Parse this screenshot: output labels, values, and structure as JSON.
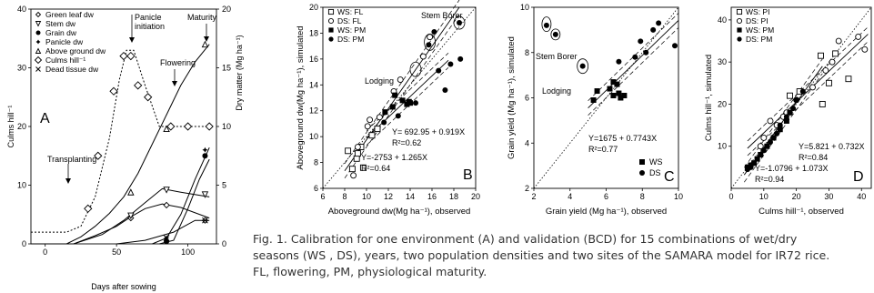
{
  "caption": {
    "line1": "Fig. 1. Calibration for one environment (A) and validation (BCD) for 15 combinations of wet/dry",
    "line2": "seasons (WS , DS), years, two population densities and two sites of the SAMARA model for IR72 rice.",
    "line3": "FL, flowering, PM, physiological maturity."
  },
  "chart_data": [
    {
      "id": "A",
      "type": "line",
      "panel_label": "A",
      "xlabel": "Days after sowing",
      "ylabel": "Culms hill⁻¹",
      "y2label": "Dry matter (Mg ha⁻¹)",
      "xlim": [
        -10,
        120
      ],
      "ylim": [
        0,
        40
      ],
      "y2lim": [
        0,
        20
      ],
      "xticks": [
        "0",
        "50",
        "100"
      ],
      "yticks": [
        "0",
        "10",
        "20",
        "30",
        "40"
      ],
      "y2ticks": [
        "0",
        "5",
        "10",
        "15",
        "20"
      ],
      "legend": [
        "Green leaf dw",
        "Stem dw",
        "Grain dw",
        "Panicle dw",
        "Above ground dw",
        "Culms hill⁻¹",
        "Dead tissue dw"
      ],
      "annotations": [
        "Transplanting",
        "Panicle initiation",
        "Maturity",
        "Flowering"
      ],
      "panicle_line1": "Panicle",
      "panicle_line2": "initiation",
      "series": [
        {
          "name": "Culms hill⁻¹",
          "axis": "left",
          "marker": "diamond",
          "style": "dotted",
          "sim": [
            [
              -10,
              2
            ],
            [
              15,
              2
            ],
            [
              25,
              3
            ],
            [
              35,
              8
            ],
            [
              45,
              18
            ],
            [
              52,
              28
            ],
            [
              57,
              33
            ],
            [
              62,
              33
            ],
            [
              70,
              27
            ],
            [
              80,
              20
            ],
            [
              90,
              20
            ],
            [
              100,
              20
            ],
            [
              115,
              20
            ]
          ],
          "obs": [
            [
              30,
              6
            ],
            [
              37,
              15
            ],
            [
              48,
              26
            ],
            [
              55,
              32
            ],
            [
              60,
              32
            ],
            [
              65,
              27
            ],
            [
              72,
              25
            ],
            [
              88,
              20
            ],
            [
              100,
              20
            ],
            [
              115,
              20
            ]
          ]
        },
        {
          "name": "Above ground dw",
          "axis": "right",
          "marker": "triangle-up",
          "style": "solid",
          "sim": [
            [
              -10,
              0
            ],
            [
              15,
              0
            ],
            [
              25,
              0.6
            ],
            [
              35,
              1.5
            ],
            [
              45,
              2.6
            ],
            [
              55,
              4
            ],
            [
              65,
              6
            ],
            [
              75,
              8.5
            ],
            [
              85,
              11
            ],
            [
              95,
              13.5
            ],
            [
              105,
              15.5
            ],
            [
              115,
              17
            ]
          ],
          "obs": [
            [
              60,
              4.4
            ],
            [
              85,
              9.8
            ],
            [
              112,
              17
            ]
          ]
        },
        {
          "name": "Green leaf dw",
          "axis": "right",
          "marker": "diamond-open",
          "style": "solid",
          "sim": [
            [
              -10,
              0
            ],
            [
              20,
              0
            ],
            [
              35,
              0.7
            ],
            [
              50,
              1.5
            ],
            [
              60,
              2.3
            ],
            [
              70,
              3
            ],
            [
              82,
              3.4
            ],
            [
              95,
              3.1
            ],
            [
              115,
              2.2
            ]
          ],
          "obs": [
            [
              60,
              2.2
            ],
            [
              85,
              3.3
            ],
            [
              112,
              2
            ]
          ]
        },
        {
          "name": "Stem dw",
          "axis": "right",
          "marker": "triangle-down",
          "style": "solid",
          "sim": [
            [
              -10,
              0
            ],
            [
              20,
              0
            ],
            [
              40,
              0.8
            ],
            [
              55,
              2
            ],
            [
              70,
              3.5
            ],
            [
              82,
              4.7
            ],
            [
              95,
              4.4
            ],
            [
              115,
              4
            ]
          ],
          "obs": [
            [
              60,
              2.4
            ],
            [
              85,
              4.6
            ],
            [
              112,
              4.2
            ]
          ]
        },
        {
          "name": "Panicle dw",
          "axis": "right",
          "marker": "star",
          "style": "solid",
          "sim": [
            [
              75,
              0
            ],
            [
              85,
              0.5
            ],
            [
              95,
              2.5
            ],
            [
              105,
              5.5
            ],
            [
              115,
              8.2
            ]
          ],
          "obs": [
            [
              85,
              0.5
            ],
            [
              112,
              8
            ]
          ]
        },
        {
          "name": "Grain dw",
          "axis": "right",
          "marker": "circle",
          "style": "solid",
          "sim": [
            [
              80,
              0
            ],
            [
              90,
              0.3
            ],
            [
              100,
              3
            ],
            [
              108,
              5.5
            ],
            [
              115,
              7.2
            ]
          ],
          "obs": [
            [
              85,
              0.2
            ],
            [
              112,
              7.5
            ]
          ]
        },
        {
          "name": "Dead tissue dw",
          "axis": "right",
          "marker": "x",
          "style": "solid",
          "sim": [
            [
              50,
              0
            ],
            [
              70,
              0.3
            ],
            [
              90,
              1
            ],
            [
              105,
              2
            ],
            [
              115,
              2
            ]
          ],
          "obs": [
            [
              85,
              0.5
            ],
            [
              112,
              2
            ]
          ]
        }
      ]
    },
    {
      "id": "B",
      "type": "scatter",
      "panel_label": "B",
      "xlabel": "Aboveground dw(Mg ha⁻¹), observed",
      "ylabel": "Aboveground dw(Mg ha⁻¹), simulated",
      "xlim": [
        6,
        20
      ],
      "ylim": [
        6,
        20
      ],
      "xticks": [
        "6",
        "8",
        "10",
        "12",
        "14",
        "16",
        "18",
        "20"
      ],
      "yticks": [
        "6",
        "8",
        "10",
        "12",
        "14",
        "16",
        "18",
        "20"
      ],
      "legend": [
        "WS: FL",
        "DS: FL",
        "WS: PM",
        "DS: PM"
      ],
      "annotations": [
        "Stem Borer",
        "Lodging"
      ],
      "eq1": "Y= 692.95 + 0.919X",
      "r2_1": "R²=0.62",
      "eq2": "Y=-2753 + 1.265X",
      "r2_2": "R²=0.64",
      "series": [
        {
          "name": "WS: FL",
          "marker": "square-open",
          "points": [
            [
              8.3,
              8.9
            ],
            [
              8.7,
              7.5
            ],
            [
              9.1,
              8.3
            ],
            [
              9.5,
              9.2
            ],
            [
              9.2,
              8.7
            ],
            [
              10.5,
              10.1
            ],
            [
              11,
              10.6
            ],
            [
              9.7,
              7.6
            ]
          ]
        },
        {
          "name": "DS: FL",
          "marker": "circle-open",
          "points": [
            [
              8.8,
              7
            ],
            [
              9.2,
              9.2
            ],
            [
              10.1,
              10.8
            ],
            [
              10.3,
              11.3
            ],
            [
              11.2,
              11.5
            ],
            [
              12.5,
              13.5
            ],
            [
              13.1,
              14.4
            ],
            [
              15.2,
              16.2
            ],
            [
              15.8,
              17.7
            ]
          ]
        },
        {
          "name": "WS: PM",
          "marker": "square",
          "points": [
            [
              11.7,
              11.9
            ],
            [
              12.4,
              12.3
            ],
            [
              13.3,
              12.8
            ],
            [
              13.7,
              12.5
            ],
            [
              13.9,
              12.7
            ],
            [
              14,
              12.6
            ],
            [
              12.6,
              13.2
            ]
          ]
        },
        {
          "name": "DS: PM",
          "marker": "circle",
          "points": [
            [
              11.6,
              11.1
            ],
            [
              12.9,
              11.6
            ],
            [
              14.5,
              12.6
            ],
            [
              15.7,
              17.1
            ],
            [
              16.2,
              18.1
            ],
            [
              16.6,
              15.1
            ],
            [
              17.2,
              13.6
            ],
            [
              17.7,
              15.6
            ],
            [
              18.5,
              18.8
            ],
            [
              18.6,
              16
            ]
          ]
        }
      ],
      "fit_lines": [
        [
          [
            10,
            9.9
          ],
          [
            17.5,
            15.9
          ]
        ],
        [
          [
            8,
            7.35
          ],
          [
            18.5,
            20
          ]
        ]
      ]
    },
    {
      "id": "C",
      "type": "scatter",
      "panel_label": "C",
      "xlabel": "Grain yield (Mg ha⁻¹), observed",
      "ylabel": "Grain yield (Mg ha⁻¹), simulated",
      "xlim": [
        2,
        10
      ],
      "ylim": [
        2,
        10
      ],
      "xticks": [
        "2",
        "4",
        "6",
        "8",
        "10"
      ],
      "yticks": [
        "2",
        "4",
        "6",
        "8",
        "10"
      ],
      "legend": [
        "WS",
        "DS"
      ],
      "annotations": [
        "Stem Borer",
        "Lodging"
      ],
      "eq1": "Y=1675 + 0.7743X",
      "r2_1": "R²=0.77",
      "series": [
        {
          "name": "WS",
          "marker": "square",
          "points": [
            [
              5.3,
              5.9
            ],
            [
              5.5,
              6.3
            ],
            [
              6.2,
              6.4
            ],
            [
              6.4,
              6.1
            ],
            [
              6.6,
              6.6
            ],
            [
              6.7,
              6.2
            ],
            [
              6.8,
              6
            ],
            [
              7,
              6.1
            ],
            [
              6.4,
              6.7
            ]
          ]
        },
        {
          "name": "DS",
          "marker": "circle",
          "points": [
            [
              2.7,
              9.2
            ],
            [
              3.2,
              8.8
            ],
            [
              4.7,
              7.4
            ],
            [
              6.7,
              7.6
            ],
            [
              7.6,
              7.8
            ],
            [
              7.9,
              8.5
            ],
            [
              8.2,
              8
            ],
            [
              8.6,
              9
            ],
            [
              8.9,
              9.3
            ],
            [
              9.8,
              8.3
            ]
          ]
        }
      ],
      "fit_lines": [
        [
          [
            5,
            5.55
          ],
          [
            10,
            9.42
          ]
        ]
      ]
    },
    {
      "id": "D",
      "type": "scatter",
      "panel_label": "D",
      "xlabel": "Culms hill⁻¹, observed",
      "ylabel": "Culms hill⁻¹, simulated",
      "xlim": [
        0,
        43
      ],
      "ylim": [
        0,
        43
      ],
      "xticks": [
        "0",
        "10",
        "20",
        "30",
        "40"
      ],
      "yticks": [
        "10",
        "20",
        "30",
        "40"
      ],
      "legend": [
        "WS: PI",
        "DS: PI",
        "WS: PM",
        "DS: PM"
      ],
      "eq1": "Y=5.821 + 0.732X",
      "r2_1": "R²=0.84",
      "eq2": "Y=-1.0796 + 1.073X",
      "r2_2": "R²=0.94",
      "series": [
        {
          "name": "WS: PI",
          "marker": "square-open",
          "points": [
            [
              27.5,
              31.5
            ],
            [
              28,
              20
            ],
            [
              30,
              25
            ],
            [
              32,
              32
            ],
            [
              36,
              26
            ],
            [
              18,
              22
            ],
            [
              21,
              23
            ]
          ]
        },
        {
          "name": "DS: PI",
          "marker": "circle-open",
          "points": [
            [
              9,
              10
            ],
            [
              10,
              12
            ],
            [
              12,
              16
            ],
            [
              14,
              15
            ],
            [
              16,
              17
            ],
            [
              17,
              18
            ],
            [
              20,
              21
            ],
            [
              25,
              24
            ],
            [
              29,
              28
            ],
            [
              31,
              30
            ],
            [
              33,
              35
            ],
            [
              39,
              36
            ],
            [
              41,
              33
            ]
          ]
        },
        {
          "name": "WS: PM",
          "marker": "square",
          "points": [
            [
              5,
              5
            ],
            [
              6,
              5.5
            ],
            [
              7,
              6
            ],
            [
              8,
              7
            ],
            [
              9,
              8
            ],
            [
              11,
              10
            ],
            [
              13,
              12
            ],
            [
              15,
              14
            ],
            [
              17,
              16
            ],
            [
              18,
              18
            ]
          ]
        },
        {
          "name": "DS: PM",
          "marker": "circle",
          "points": [
            [
              5,
              4.5
            ],
            [
              6,
              5
            ],
            [
              7,
              6
            ],
            [
              10,
              9
            ],
            [
              12,
              11
            ],
            [
              14,
              13
            ],
            [
              15,
              15
            ],
            [
              17,
              17
            ],
            [
              19,
              19
            ],
            [
              20,
              21
            ],
            [
              22,
              23
            ]
          ]
        }
      ],
      "fit_lines": [
        [
          [
            5,
            9.5
          ],
          [
            42,
            36.6
          ]
        ],
        [
          [
            4,
            3.2
          ],
          [
            28,
            29
          ]
        ]
      ]
    }
  ]
}
